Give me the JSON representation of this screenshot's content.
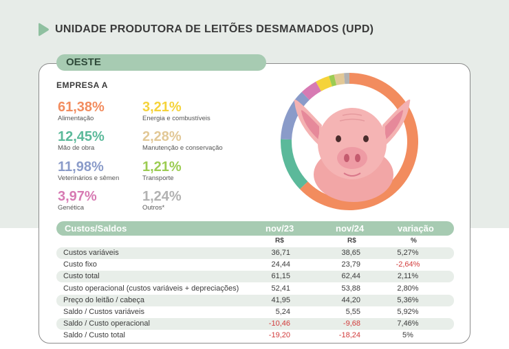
{
  "header": {
    "title": "UNIDADE PRODUTORA DE LEITÕES DESMAMADOS (UPD)"
  },
  "region": "OESTE",
  "company": "EMPRESA A",
  "colors": {
    "alimentacao": "#f28c5e",
    "mao_de_obra": "#5bb99a",
    "veterinarios": "#8a9bc9",
    "genetica": "#d77ab3",
    "energia": "#f5d33a",
    "manutencao": "#e2c896",
    "transporte": "#9ccc52",
    "outros": "#b2b2b2",
    "accent": "#a7cbb2",
    "negative": "#d23a3a"
  },
  "stats": [
    {
      "pct": "61,38%",
      "label": "Alimentação",
      "value": 61.38,
      "color": "#f28c5e"
    },
    {
      "pct": "12,45%",
      "label": "Mão de obra",
      "value": 12.45,
      "color": "#5bb99a"
    },
    {
      "pct": "11,98%",
      "label": "Veterinários e sêmen",
      "value": 11.98,
      "color": "#8a9bc9"
    },
    {
      "pct": "3,97%",
      "label": "Genética",
      "value": 3.97,
      "color": "#d77ab3"
    },
    {
      "pct": "3,21%",
      "label": "Energia e combustíveis",
      "value": 3.21,
      "color": "#f5d33a"
    },
    {
      "pct": "2,28%",
      "label": "Manutenção e conservação",
      "value": 2.28,
      "color": "#e2c896"
    },
    {
      "pct": "1,21%",
      "label": "Transporte",
      "value": 1.21,
      "color": "#9ccc52"
    },
    {
      "pct": "1,24%",
      "label": "Outros*",
      "value": 1.24,
      "color": "#b2b2b2"
    }
  ],
  "table": {
    "headers": [
      "Custos/Saldos",
      "nov/23",
      "nov/24",
      "variação"
    ],
    "units": [
      "R$",
      "R$",
      "%"
    ],
    "rows": [
      {
        "label": "Custos variáveis",
        "nov23": "36,71",
        "nov24": "38,65",
        "var": "5,27%"
      },
      {
        "label": "Custo fixo",
        "nov23": "24,44",
        "nov24": "23,79",
        "var": "-2,64%"
      },
      {
        "label": "Custo total",
        "nov23": "61,15",
        "nov24": "62,44",
        "var": "2,11%"
      },
      {
        "label": "Custo operacional (custos variáveis + depreciações)",
        "nov23": "52,41",
        "nov24": "53,88",
        "var": "2,80%"
      },
      {
        "label": "Preço do leitão / cabeça",
        "nov23": "41,95",
        "nov24": "44,20",
        "var": "5,36%"
      },
      {
        "label": "Saldo / Custos variáveis",
        "nov23": "5,24",
        "nov24": "5,55",
        "var": "5,92%"
      },
      {
        "label": "Saldo / Custo operacional",
        "nov23": "-10,46",
        "nov24": "-9,68",
        "var": "7,46%"
      },
      {
        "label": "Saldo / Custo total",
        "nov23": "-19,20",
        "nov24": "-18,24",
        "var": "5%"
      }
    ]
  },
  "chart_data": {
    "type": "pie",
    "categories": [
      "Alimentação",
      "Mão de obra",
      "Veterinários e sêmen",
      "Genética",
      "Energia e combustíveis",
      "Manutenção e conservação",
      "Transporte",
      "Outros*"
    ],
    "values": [
      61.38,
      12.45,
      11.98,
      3.97,
      3.21,
      2.28,
      1.21,
      1.24
    ]
  }
}
